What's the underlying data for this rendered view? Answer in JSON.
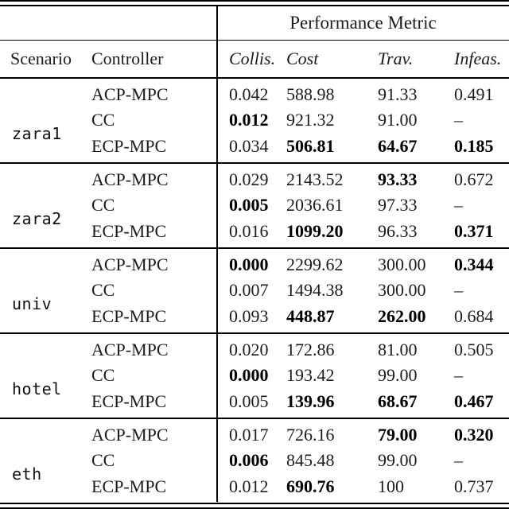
{
  "page": {
    "background": "#ffffff",
    "text_color": "#1c1c1c",
    "rule_color": "#000000"
  },
  "table": {
    "group_header": "Performance Metric",
    "columns": {
      "scenario": "Scenario",
      "controller": "Controller",
      "metrics": [
        "Collis.",
        "Cost",
        "Trav.",
        "Infeas."
      ]
    },
    "scenarios": [
      {
        "name": "zara1",
        "rows": [
          {
            "controller": "ACP-MPC",
            "values": [
              "0.042",
              "588.98",
              "91.33",
              "0.491"
            ],
            "bold": [
              false,
              false,
              false,
              false
            ]
          },
          {
            "controller": "CC",
            "values": [
              "0.012",
              "921.32",
              "91.00",
              "–"
            ],
            "bold": [
              true,
              false,
              false,
              false
            ]
          },
          {
            "controller": "ECP-MPC",
            "values": [
              "0.034",
              "506.81",
              "64.67",
              "0.185"
            ],
            "bold": [
              false,
              true,
              true,
              true
            ]
          }
        ]
      },
      {
        "name": "zara2",
        "rows": [
          {
            "controller": "ACP-MPC",
            "values": [
              "0.029",
              "2143.52",
              "93.33",
              "0.672"
            ],
            "bold": [
              false,
              false,
              true,
              false
            ]
          },
          {
            "controller": "CC",
            "values": [
              "0.005",
              "2036.61",
              "97.33",
              "–"
            ],
            "bold": [
              true,
              false,
              false,
              false
            ]
          },
          {
            "controller": "ECP-MPC",
            "values": [
              "0.016",
              "1099.20",
              "96.33",
              "0.371"
            ],
            "bold": [
              false,
              true,
              false,
              true
            ]
          }
        ]
      },
      {
        "name": "univ",
        "rows": [
          {
            "controller": "ACP-MPC",
            "values": [
              "0.000",
              "2299.62",
              "300.00",
              "0.344"
            ],
            "bold": [
              true,
              false,
              false,
              true
            ]
          },
          {
            "controller": "CC",
            "values": [
              "0.007",
              "1494.38",
              "300.00",
              "–"
            ],
            "bold": [
              false,
              false,
              false,
              false
            ]
          },
          {
            "controller": "ECP-MPC",
            "values": [
              "0.093",
              "448.87",
              "262.00",
              "0.684"
            ],
            "bold": [
              false,
              true,
              true,
              false
            ]
          }
        ]
      },
      {
        "name": "hotel",
        "rows": [
          {
            "controller": "ACP-MPC",
            "values": [
              "0.020",
              "172.86",
              "81.00",
              "0.505"
            ],
            "bold": [
              false,
              false,
              false,
              false
            ]
          },
          {
            "controller": "CC",
            "values": [
              "0.000",
              "193.42",
              "99.00",
              "–"
            ],
            "bold": [
              true,
              false,
              false,
              false
            ]
          },
          {
            "controller": "ECP-MPC",
            "values": [
              "0.005",
              "139.96",
              "68.67",
              "0.467"
            ],
            "bold": [
              false,
              true,
              true,
              true
            ]
          }
        ]
      },
      {
        "name": "eth",
        "rows": [
          {
            "controller": "ACP-MPC",
            "values": [
              "0.017",
              "726.16",
              "79.00",
              "0.320"
            ],
            "bold": [
              false,
              false,
              true,
              true
            ]
          },
          {
            "controller": "CC",
            "values": [
              "0.006",
              "845.48",
              "99.00",
              "–"
            ],
            "bold": [
              true,
              false,
              false,
              false
            ]
          },
          {
            "controller": "ECP-MPC",
            "values": [
              "0.012",
              "690.76",
              "100",
              "0.737"
            ],
            "bold": [
              false,
              true,
              false,
              false
            ]
          }
        ]
      }
    ]
  },
  "layout": {
    "block_top_start": 98,
    "block_height": 107
  }
}
